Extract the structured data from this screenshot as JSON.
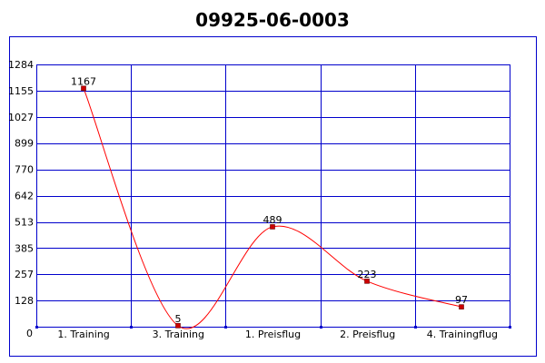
{
  "chart_data": {
    "type": "line",
    "title": "09925-06-0003",
    "xlabel": "",
    "ylabel": "",
    "categories": [
      "1. Training",
      "3. Training",
      "1. Preisflug",
      "2. Preisflug",
      "4. Trainingflug"
    ],
    "series": [
      {
        "values": [
          1167,
          5,
          489,
          223,
          97
        ],
        "color": "#ff0000",
        "marker_color": "#cc0000"
      }
    ],
    "ylim": [
      0,
      1284
    ],
    "yticks": [
      "0",
      "128",
      "257",
      "385",
      "513",
      "642",
      "770",
      "899",
      "1027",
      "1155",
      "1284"
    ],
    "grid": true,
    "grid_color": "#0000cc",
    "frame_color": "#0000cc",
    "smooth": true,
    "legend": "none"
  }
}
